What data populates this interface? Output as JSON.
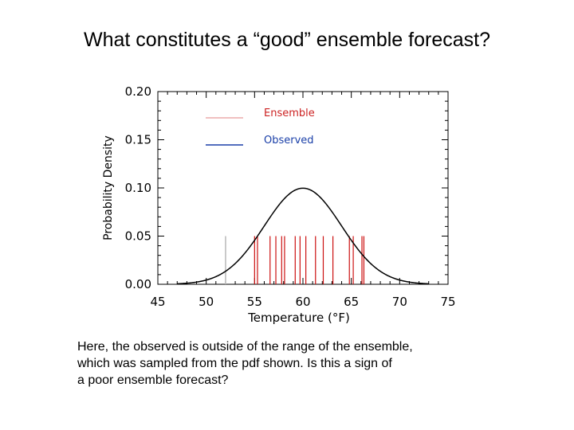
{
  "slide": {
    "title": "What constitutes a “good” ensemble forecast?",
    "caption_lines": [
      "Here, the observed is outside of the range of the ensemble,",
      "which was sampled from the pdf shown.  Is this a sign of",
      "a poor ensemble forecast?"
    ]
  },
  "chart_data": {
    "type": "line",
    "xlabel": "Temperature  (°F)",
    "ylabel": "Probability Density",
    "xlim": [
      45,
      75
    ],
    "ylim": [
      0,
      0.2
    ],
    "xticks": [
      45,
      50,
      55,
      60,
      65,
      70,
      75
    ],
    "yticks": [
      0.0,
      0.05,
      0.1,
      0.15,
      0.2
    ],
    "ytick_labels": [
      "0.00",
      "0.05",
      "0.10",
      "0.15",
      "0.20"
    ],
    "grid": false,
    "legend_placement": "top-left",
    "legend": [
      {
        "label": "Ensemble",
        "color": "#e08080",
        "text_color": "#cc2222"
      },
      {
        "label": "Observed",
        "color": "#1a3fa8",
        "text_color": "#1a3fa8"
      }
    ],
    "pdf_curve": {
      "distribution": "normal",
      "mean": 60,
      "sd": 4,
      "color": "#000000"
    },
    "ensemble_members": [
      55.0,
      55.3,
      56.6,
      57.2,
      57.8,
      58.1,
      59.2,
      59.7,
      60.3,
      61.3,
      62.1,
      63.1,
      64.8,
      65.2,
      66.1,
      66.3
    ],
    "observed": 52.0,
    "observed_line_color": "#b8b8b8",
    "ensemble_line_color": "#cc1111",
    "member_line_height": 0.05
  }
}
